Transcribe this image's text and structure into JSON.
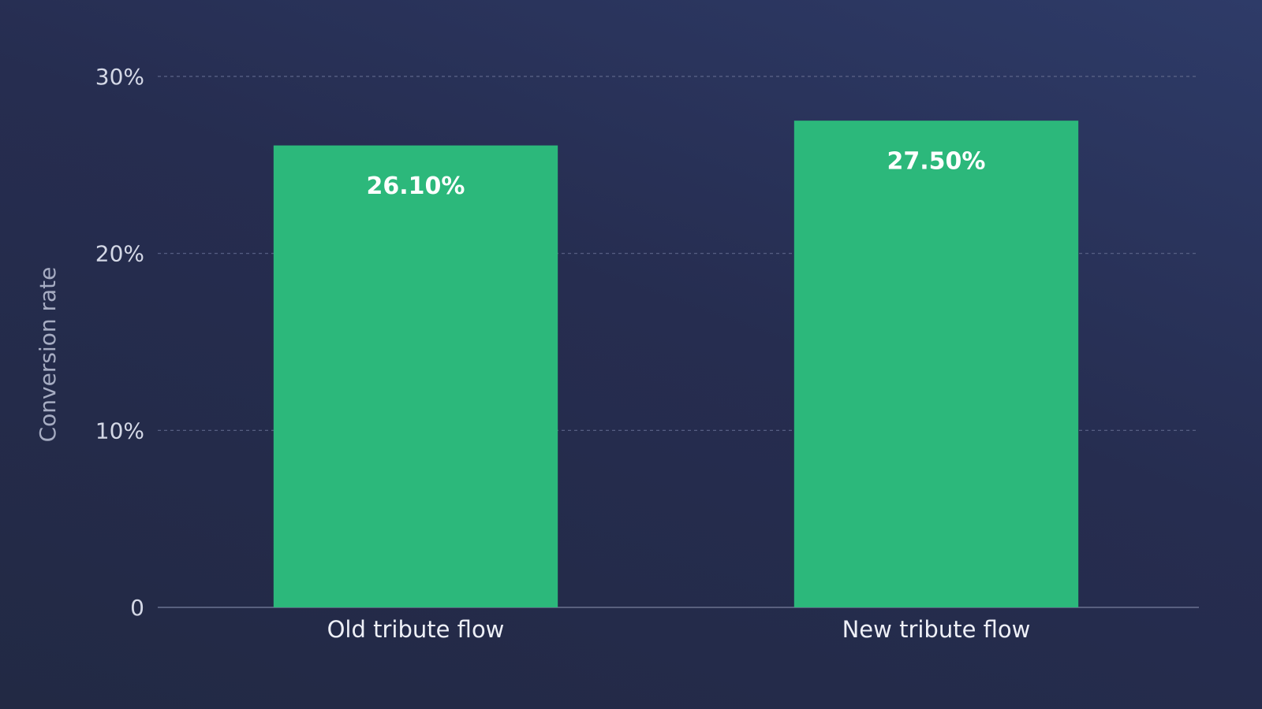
{
  "chart_data": {
    "type": "bar",
    "y_label": "Conversion rate",
    "categories": [
      "Old tribute flow",
      "New tribute flow"
    ],
    "values": [
      26.1,
      27.5
    ],
    "value_labels": [
      "26.10%",
      "27.50%"
    ],
    "color": "#2cb87b",
    "ylim": [
      0,
      30
    ],
    "yticks": [
      0,
      {
        "value": 10,
        "label": "10%"
      },
      {
        "value": 20,
        "label": "20%"
      },
      {
        "value": 30,
        "label": "30%"
      }
    ],
    "grid": true
  }
}
